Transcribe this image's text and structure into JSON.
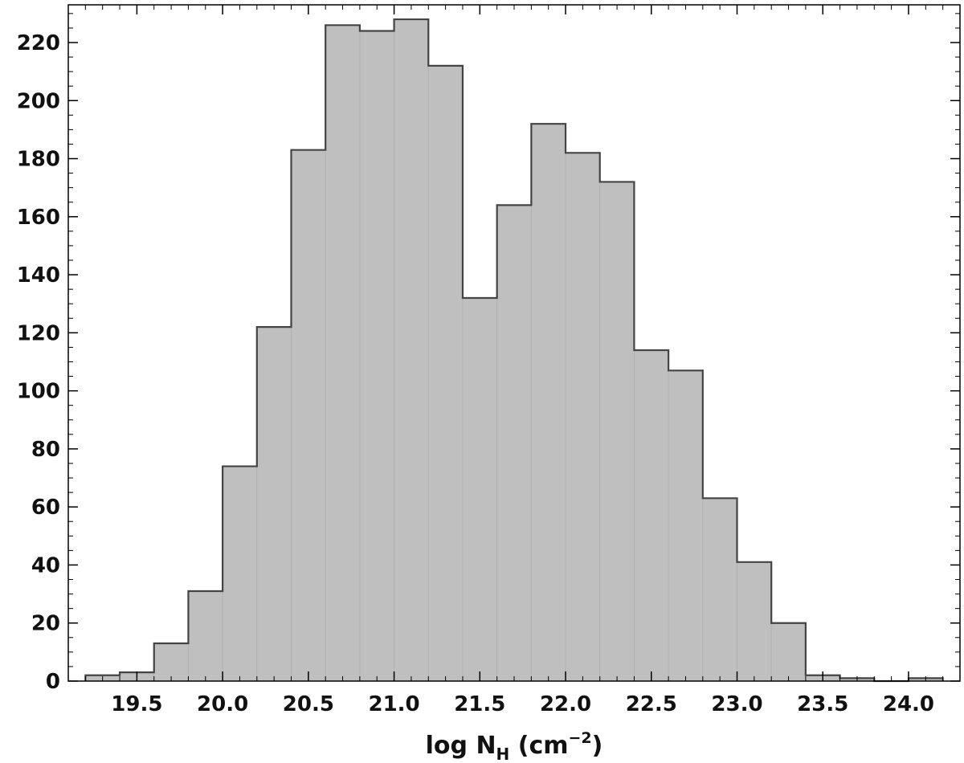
{
  "chart_data": {
    "type": "bar",
    "title": "",
    "xlabel": {
      "main": "log N",
      "sub": "H",
      "unit_open": " (cm",
      "unit_sup": "−2",
      "unit_close": ")"
    },
    "ylabel": "",
    "bin_width": 0.2,
    "bins": [
      {
        "x0": 19.2,
        "count": 2
      },
      {
        "x0": 19.4,
        "count": 3
      },
      {
        "x0": 19.6,
        "count": 13
      },
      {
        "x0": 19.8,
        "count": 31
      },
      {
        "x0": 20.0,
        "count": 74
      },
      {
        "x0": 20.2,
        "count": 122
      },
      {
        "x0": 20.4,
        "count": 183
      },
      {
        "x0": 20.6,
        "count": 226
      },
      {
        "x0": 20.8,
        "count": 224
      },
      {
        "x0": 21.0,
        "count": 228
      },
      {
        "x0": 21.2,
        "count": 212
      },
      {
        "x0": 21.4,
        "count": 132
      },
      {
        "x0": 21.6,
        "count": 164
      },
      {
        "x0": 21.8,
        "count": 192
      },
      {
        "x0": 22.0,
        "count": 182
      },
      {
        "x0": 22.2,
        "count": 172
      },
      {
        "x0": 22.4,
        "count": 114
      },
      {
        "x0": 22.6,
        "count": 107
      },
      {
        "x0": 22.8,
        "count": 63
      },
      {
        "x0": 23.0,
        "count": 41
      },
      {
        "x0": 23.2,
        "count": 20
      },
      {
        "x0": 23.4,
        "count": 2
      },
      {
        "x0": 23.6,
        "count": 1
      },
      {
        "x0": 23.8,
        "count": 0
      },
      {
        "x0": 24.0,
        "count": 1
      }
    ],
    "xlim": [
      19.1,
      24.3
    ],
    "ylim": [
      0,
      233
    ],
    "x_ticks": [
      "19.5",
      "20.0",
      "20.5",
      "21.0",
      "21.5",
      "22.0",
      "22.5",
      "23.0",
      "23.5",
      "24.0"
    ],
    "y_ticks": [
      "0",
      "20",
      "40",
      "60",
      "80",
      "100",
      "120",
      "140",
      "160",
      "180",
      "200",
      "220"
    ],
    "grid": false,
    "legend": "none",
    "colors": {
      "bar_fill": "#bfbfbf",
      "bar_edge": "#444444",
      "axis": "#000000"
    }
  }
}
